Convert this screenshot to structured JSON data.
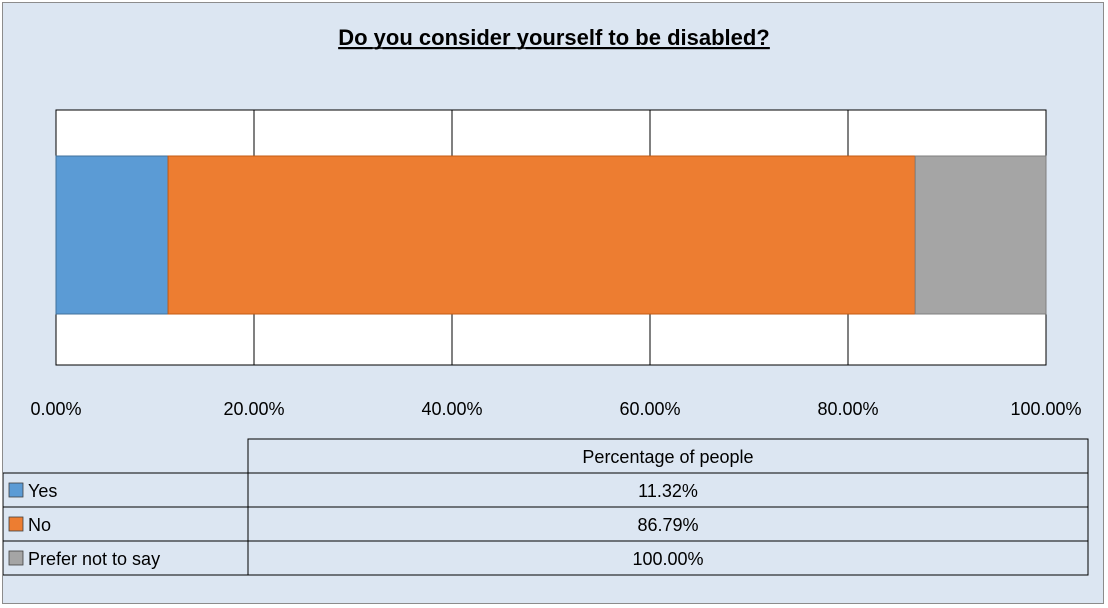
{
  "chart_data": {
    "type": "bar",
    "orientation": "horizontal-stacked-cumulative",
    "title": "Do you consider yourself to be disabled?",
    "xlim": [
      0,
      100
    ],
    "x_ticks": [
      "0.00%",
      "20.00%",
      "40.00%",
      "60.00%",
      "80.00%",
      "100.00%"
    ],
    "grid": true,
    "series_header": "Percentage of people",
    "series": [
      {
        "name": "Yes",
        "value": 11.32,
        "label": "11.32%",
        "color": "#5b9bd5"
      },
      {
        "name": "No",
        "value": 86.79,
        "label": "86.79%",
        "color": "#ed7d31"
      },
      {
        "name": "Prefer not to say",
        "value": 100.0,
        "label": "100.00%",
        "color": "#a5a5a5"
      }
    ]
  }
}
